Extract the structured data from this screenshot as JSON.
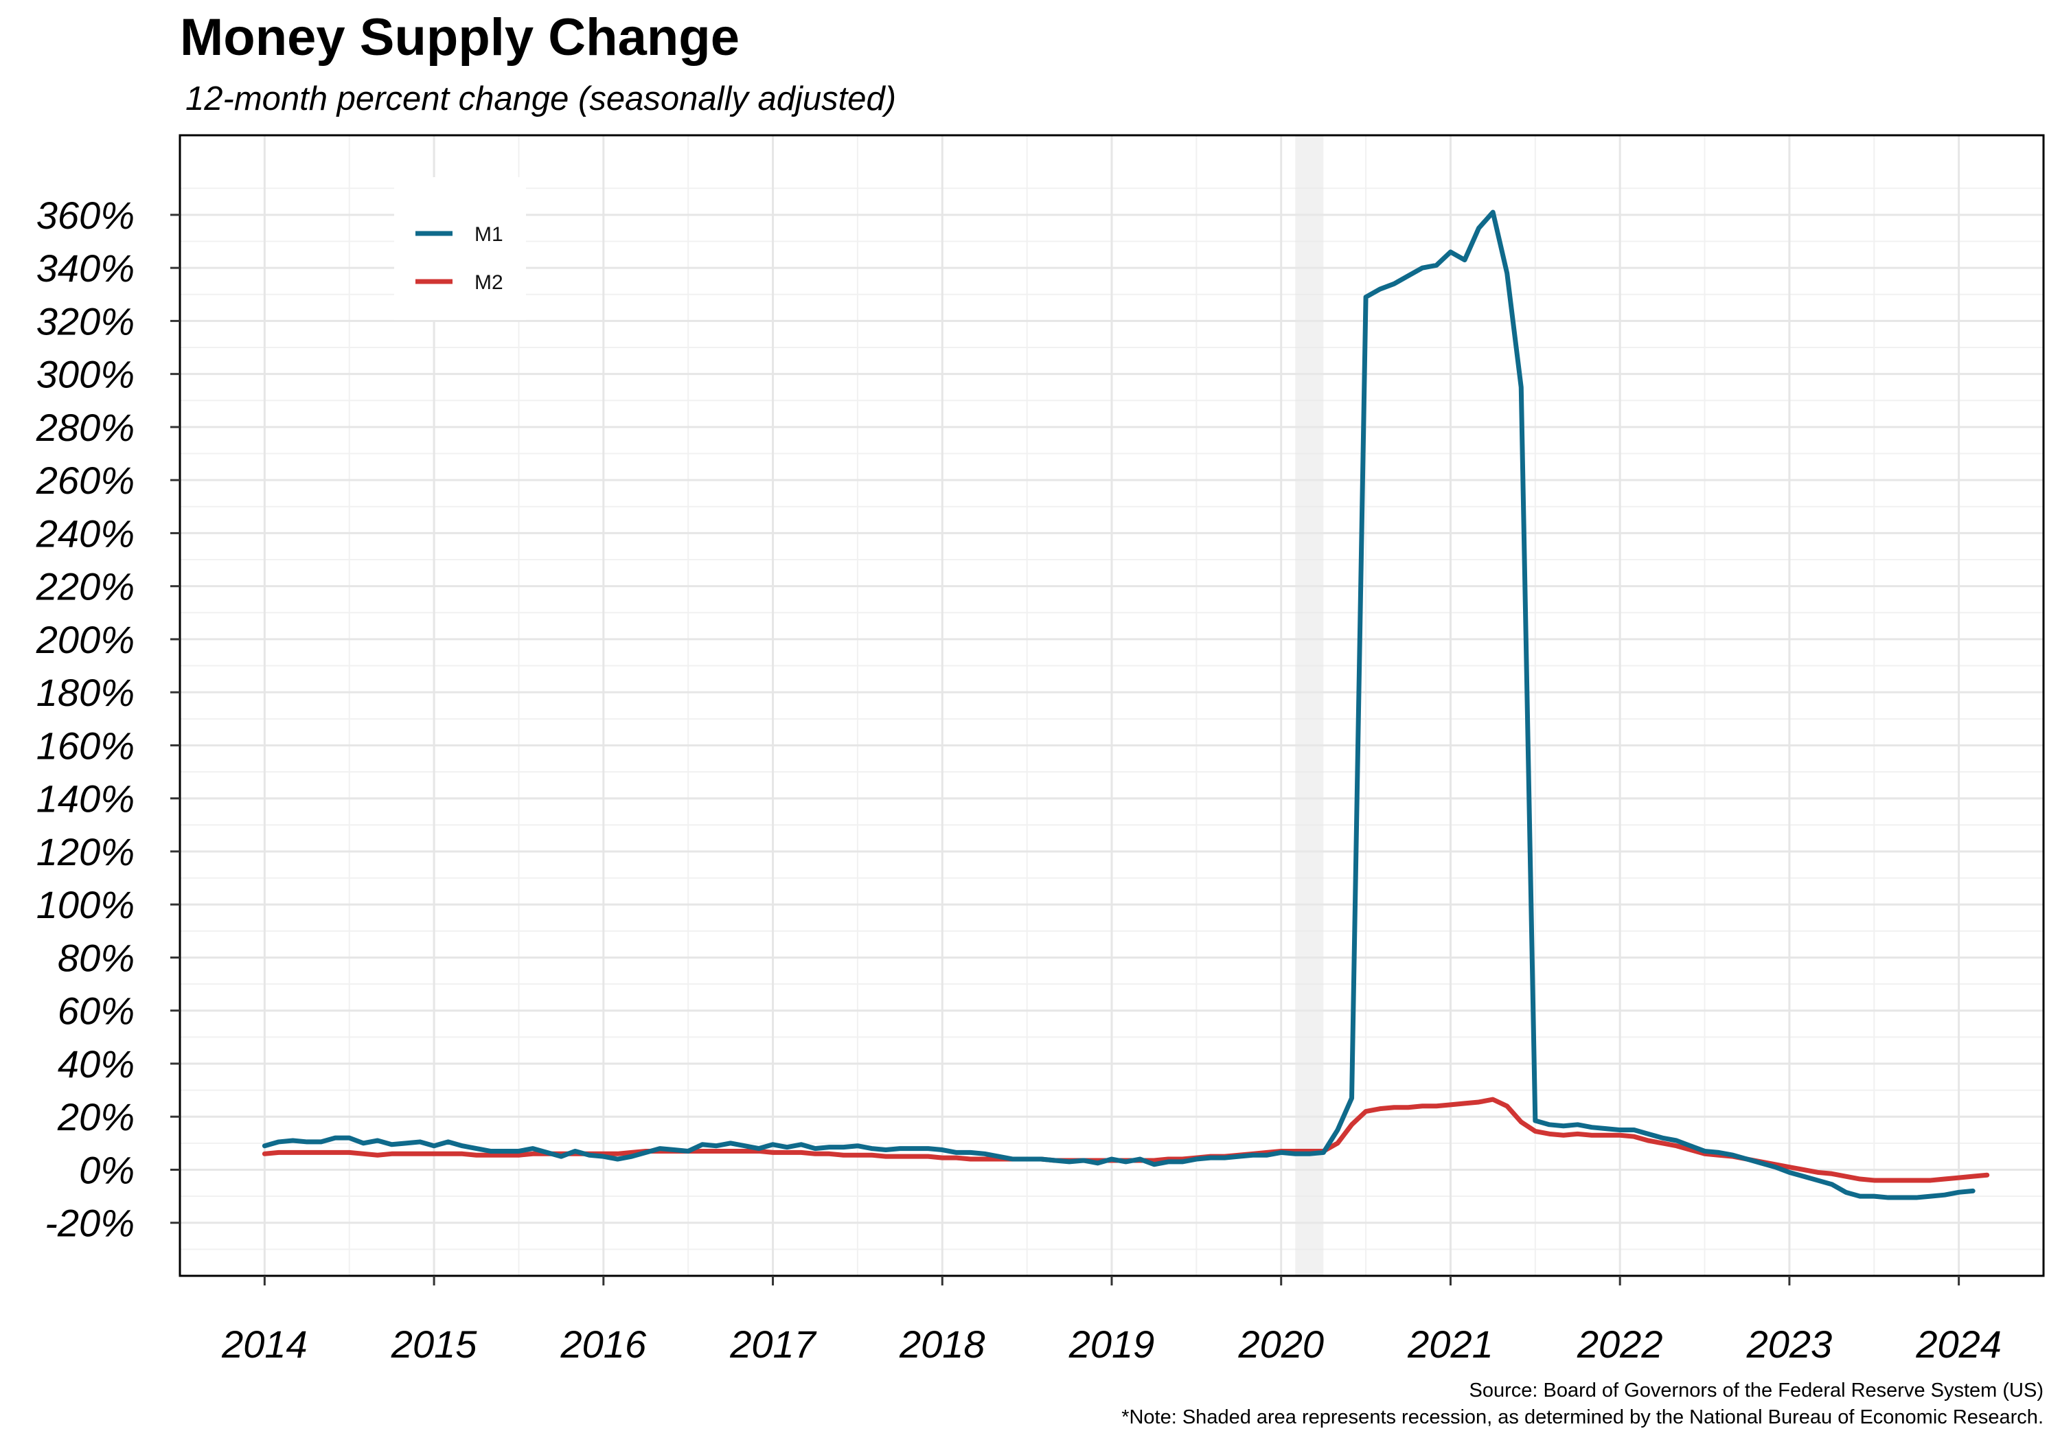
{
  "chart_data": {
    "type": "line",
    "title": "Money Supply Change",
    "subtitle": "12-month percent change (seasonally adjusted)",
    "xlabel": "",
    "ylabel": "",
    "x_start": "2014-01",
    "x_frequency": "monthly",
    "xlim": [
      2013.5,
      2024.5
    ],
    "ylim": [
      -40,
      390
    ],
    "y_ticks": [
      -20,
      0,
      20,
      40,
      60,
      80,
      100,
      120,
      140,
      160,
      180,
      200,
      220,
      240,
      260,
      280,
      300,
      320,
      340,
      360
    ],
    "y_tick_labels": [
      "-20%",
      "0%",
      "20%",
      "40%",
      "60%",
      "80%",
      "100%",
      "120%",
      "140%",
      "160%",
      "180%",
      "200%",
      "220%",
      "240%",
      "260%",
      "280%",
      "300%",
      "320%",
      "340%",
      "360%"
    ],
    "x_ticks": [
      2014,
      2015,
      2016,
      2017,
      2018,
      2019,
      2020,
      2021,
      2022,
      2023,
      2024
    ],
    "x_tick_labels": [
      "2014",
      "2015",
      "2016",
      "2017",
      "2018",
      "2019",
      "2020",
      "2021",
      "2022",
      "2023",
      "2024"
    ],
    "grid": true,
    "legend_position": "top-left",
    "recession": {
      "start": "2020-02",
      "end": "2020-04"
    },
    "series": [
      {
        "name": "M1",
        "color": "#0f6a8b",
        "values": [
          9,
          10.5,
          11,
          10.5,
          10.5,
          12,
          12,
          10,
          11,
          9.5,
          10,
          10.5,
          9,
          10.5,
          9,
          8,
          7,
          7,
          7,
          8,
          6.5,
          5,
          7,
          5.5,
          5,
          4,
          5,
          6.5,
          8,
          7.5,
          7,
          9.5,
          9,
          10,
          9,
          8,
          9.5,
          8.5,
          9.5,
          8,
          8.5,
          8.5,
          9,
          8,
          7.5,
          8,
          8,
          8,
          7.5,
          6.5,
          6.5,
          6,
          5,
          4,
          4,
          4,
          3.5,
          3,
          3.5,
          2.5,
          4,
          3,
          4,
          2,
          3,
          3,
          4,
          4.5,
          4.5,
          5,
          5.5,
          5.5,
          6.5,
          6,
          6,
          6.5,
          15,
          27,
          329,
          332,
          334,
          337,
          340,
          341,
          346,
          343,
          355,
          361,
          338,
          295,
          18.5,
          17,
          16.5,
          17,
          16,
          15.5,
          15,
          15,
          13.5,
          12,
          11,
          9,
          7,
          6.5,
          5.5,
          4,
          2.5,
          1,
          -1,
          -2.5,
          -4,
          -5.5,
          -8.5,
          -10,
          -10,
          -10.5,
          -10.5,
          -10.5,
          -10,
          -9.5,
          -8.5,
          -8
        ]
      },
      {
        "name": "M2",
        "color": "#d03533",
        "values": [
          6,
          6.5,
          6.5,
          6.5,
          6.5,
          6.5,
          6.5,
          6,
          5.5,
          6,
          6,
          6,
          6,
          6,
          6,
          5.5,
          5.5,
          5.5,
          5.5,
          6,
          6,
          6,
          6,
          6,
          6,
          6,
          6.5,
          7,
          7,
          7,
          7,
          7,
          7,
          7,
          7,
          7,
          6.5,
          6.5,
          6.5,
          6,
          6,
          5.5,
          5.5,
          5.5,
          5,
          5,
          5,
          5,
          4.5,
          4.5,
          4,
          4,
          4,
          4,
          4,
          4,
          3.5,
          3.5,
          3.5,
          3.5,
          3.5,
          3.5,
          3.5,
          3.5,
          4,
          4,
          4.5,
          5,
          5,
          5.5,
          6,
          6.5,
          7,
          7,
          7,
          7,
          10,
          17,
          22,
          23,
          23.5,
          23.5,
          24,
          24,
          24.5,
          25,
          25.5,
          26.5,
          24,
          18,
          14.5,
          13.5,
          13,
          13.5,
          13,
          13,
          13,
          12.5,
          11,
          10,
          9,
          7.5,
          6,
          5.5,
          5,
          4,
          3,
          2,
          1,
          0,
          -1,
          -1.5,
          -2.5,
          -3.5,
          -4,
          -4,
          -4,
          -4,
          -4,
          -3.5,
          -3,
          -2.5,
          -2
        ]
      }
    ]
  },
  "captions": {
    "source": "Source: Board of Governors of the Federal Reserve System (US)",
    "note": "*Note: Shaded area represents recession, as determined by the National Bureau of Economic Research."
  }
}
